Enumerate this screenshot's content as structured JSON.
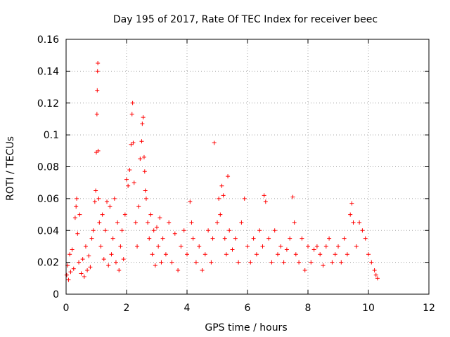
{
  "chart_data": {
    "type": "scatter",
    "title": "Day 195 of 2017, Rate Of TEC Index for receiver beec",
    "xlabel": "GPS time / hours",
    "ylabel": "ROTI / TECUs",
    "xlim": [
      0,
      12
    ],
    "ylim": [
      0,
      0.16
    ],
    "xticks": [
      0,
      2,
      4,
      6,
      8,
      10,
      12
    ],
    "yticks": [
      0,
      0.02,
      0.04,
      0.06,
      0.08,
      0.1,
      0.12,
      0.14,
      0.16
    ],
    "xtick_labels": [
      "0",
      "2",
      "4",
      "6",
      "8",
      "10",
      "12"
    ],
    "ytick_labels": [
      "0",
      "0.02",
      "0.04",
      "0.06",
      "0.08",
      "0.1",
      "0.12",
      "0.14",
      "0.16"
    ],
    "grid": true,
    "marker": "+",
    "color": "#ff0000",
    "series": [
      {
        "name": "ROTI",
        "points": [
          [
            0.02,
            0.012
          ],
          [
            0.05,
            0.018
          ],
          [
            0.08,
            0.009
          ],
          [
            0.12,
            0.025
          ],
          [
            0.15,
            0.014
          ],
          [
            0.2,
            0.028
          ],
          [
            0.25,
            0.016
          ],
          [
            0.3,
            0.048
          ],
          [
            0.33,
            0.055
          ],
          [
            0.35,
            0.06
          ],
          [
            0.38,
            0.038
          ],
          [
            0.42,
            0.02
          ],
          [
            0.45,
            0.05
          ],
          [
            0.5,
            0.013
          ],
          [
            0.55,
            0.022
          ],
          [
            0.6,
            0.011
          ],
          [
            0.65,
            0.03
          ],
          [
            0.7,
            0.015
          ],
          [
            0.75,
            0.024
          ],
          [
            0.8,
            0.017
          ],
          [
            0.85,
            0.035
          ],
          [
            0.9,
            0.04
          ],
          [
            0.95,
            0.058
          ],
          [
            0.98,
            0.065
          ],
          [
            1.0,
            0.089
          ],
          [
            1.02,
            0.113
          ],
          [
            1.03,
            0.128
          ],
          [
            1.04,
            0.14
          ],
          [
            1.05,
            0.145
          ],
          [
            1.06,
            0.09
          ],
          [
            1.08,
            0.06
          ],
          [
            1.1,
            0.045
          ],
          [
            1.15,
            0.03
          ],
          [
            1.2,
            0.05
          ],
          [
            1.25,
            0.022
          ],
          [
            1.3,
            0.04
          ],
          [
            1.35,
            0.058
          ],
          [
            1.4,
            0.018
          ],
          [
            1.45,
            0.055
          ],
          [
            1.5,
            0.025
          ],
          [
            1.55,
            0.035
          ],
          [
            1.6,
            0.06
          ],
          [
            1.65,
            0.02
          ],
          [
            1.7,
            0.045
          ],
          [
            1.75,
            0.015
          ],
          [
            1.8,
            0.03
          ],
          [
            1.85,
            0.04
          ],
          [
            1.9,
            0.022
          ],
          [
            1.95,
            0.05
          ],
          [
            2.0,
            0.072
          ],
          [
            2.05,
            0.068
          ],
          [
            2.1,
            0.078
          ],
          [
            2.15,
            0.094
          ],
          [
            2.18,
            0.113
          ],
          [
            2.2,
            0.12
          ],
          [
            2.22,
            0.095
          ],
          [
            2.25,
            0.07
          ],
          [
            2.3,
            0.045
          ],
          [
            2.35,
            0.03
          ],
          [
            2.4,
            0.055
          ],
          [
            2.45,
            0.085
          ],
          [
            2.5,
            0.096
          ],
          [
            2.52,
            0.107
          ],
          [
            2.55,
            0.111
          ],
          [
            2.58,
            0.086
          ],
          [
            2.6,
            0.077
          ],
          [
            2.62,
            0.065
          ],
          [
            2.65,
            0.06
          ],
          [
            2.7,
            0.045
          ],
          [
            2.75,
            0.035
          ],
          [
            2.8,
            0.05
          ],
          [
            2.85,
            0.025
          ],
          [
            2.9,
            0.04
          ],
          [
            2.95,
            0.018
          ],
          [
            3.0,
            0.042
          ],
          [
            3.05,
            0.03
          ],
          [
            3.1,
            0.048
          ],
          [
            3.15,
            0.02
          ],
          [
            3.2,
            0.035
          ],
          [
            3.3,
            0.025
          ],
          [
            3.4,
            0.045
          ],
          [
            3.5,
            0.02
          ],
          [
            3.6,
            0.038
          ],
          [
            3.7,
            0.015
          ],
          [
            3.8,
            0.03
          ],
          [
            3.9,
            0.04
          ],
          [
            4.0,
            0.025
          ],
          [
            4.1,
            0.058
          ],
          [
            4.15,
            0.045
          ],
          [
            4.2,
            0.035
          ],
          [
            4.3,
            0.02
          ],
          [
            4.4,
            0.03
          ],
          [
            4.5,
            0.015
          ],
          [
            4.6,
            0.025
          ],
          [
            4.7,
            0.04
          ],
          [
            4.8,
            0.02
          ],
          [
            4.85,
            0.035
          ],
          [
            4.9,
            0.095
          ],
          [
            5.0,
            0.045
          ],
          [
            5.05,
            0.06
          ],
          [
            5.1,
            0.05
          ],
          [
            5.15,
            0.068
          ],
          [
            5.2,
            0.062
          ],
          [
            5.25,
            0.035
          ],
          [
            5.3,
            0.025
          ],
          [
            5.35,
            0.074
          ],
          [
            5.4,
            0.04
          ],
          [
            5.5,
            0.028
          ],
          [
            5.6,
            0.035
          ],
          [
            5.7,
            0.02
          ],
          [
            5.8,
            0.045
          ],
          [
            5.9,
            0.06
          ],
          [
            6.0,
            0.03
          ],
          [
            6.1,
            0.02
          ],
          [
            6.2,
            0.035
          ],
          [
            6.3,
            0.025
          ],
          [
            6.4,
            0.04
          ],
          [
            6.5,
            0.03
          ],
          [
            6.55,
            0.062
          ],
          [
            6.6,
            0.058
          ],
          [
            6.7,
            0.035
          ],
          [
            6.8,
            0.02
          ],
          [
            6.9,
            0.04
          ],
          [
            7.0,
            0.025
          ],
          [
            7.1,
            0.03
          ],
          [
            7.2,
            0.02
          ],
          [
            7.3,
            0.028
          ],
          [
            7.4,
            0.035
          ],
          [
            7.5,
            0.061
          ],
          [
            7.55,
            0.045
          ],
          [
            7.6,
            0.025
          ],
          [
            7.7,
            0.02
          ],
          [
            7.8,
            0.035
          ],
          [
            7.9,
            0.015
          ],
          [
            8.0,
            0.03
          ],
          [
            8.1,
            0.02
          ],
          [
            8.2,
            0.028
          ],
          [
            8.3,
            0.03
          ],
          [
            8.4,
            0.025
          ],
          [
            8.5,
            0.018
          ],
          [
            8.6,
            0.03
          ],
          [
            8.7,
            0.035
          ],
          [
            8.8,
            0.02
          ],
          [
            8.9,
            0.025
          ],
          [
            9.0,
            0.03
          ],
          [
            9.1,
            0.02
          ],
          [
            9.2,
            0.035
          ],
          [
            9.3,
            0.025
          ],
          [
            9.4,
            0.05
          ],
          [
            9.45,
            0.057
          ],
          [
            9.5,
            0.045
          ],
          [
            9.6,
            0.03
          ],
          [
            9.7,
            0.045
          ],
          [
            9.8,
            0.04
          ],
          [
            9.9,
            0.035
          ],
          [
            10.0,
            0.025
          ],
          [
            10.1,
            0.02
          ],
          [
            10.2,
            0.015
          ],
          [
            10.25,
            0.012
          ],
          [
            10.3,
            0.01
          ]
        ]
      }
    ]
  }
}
